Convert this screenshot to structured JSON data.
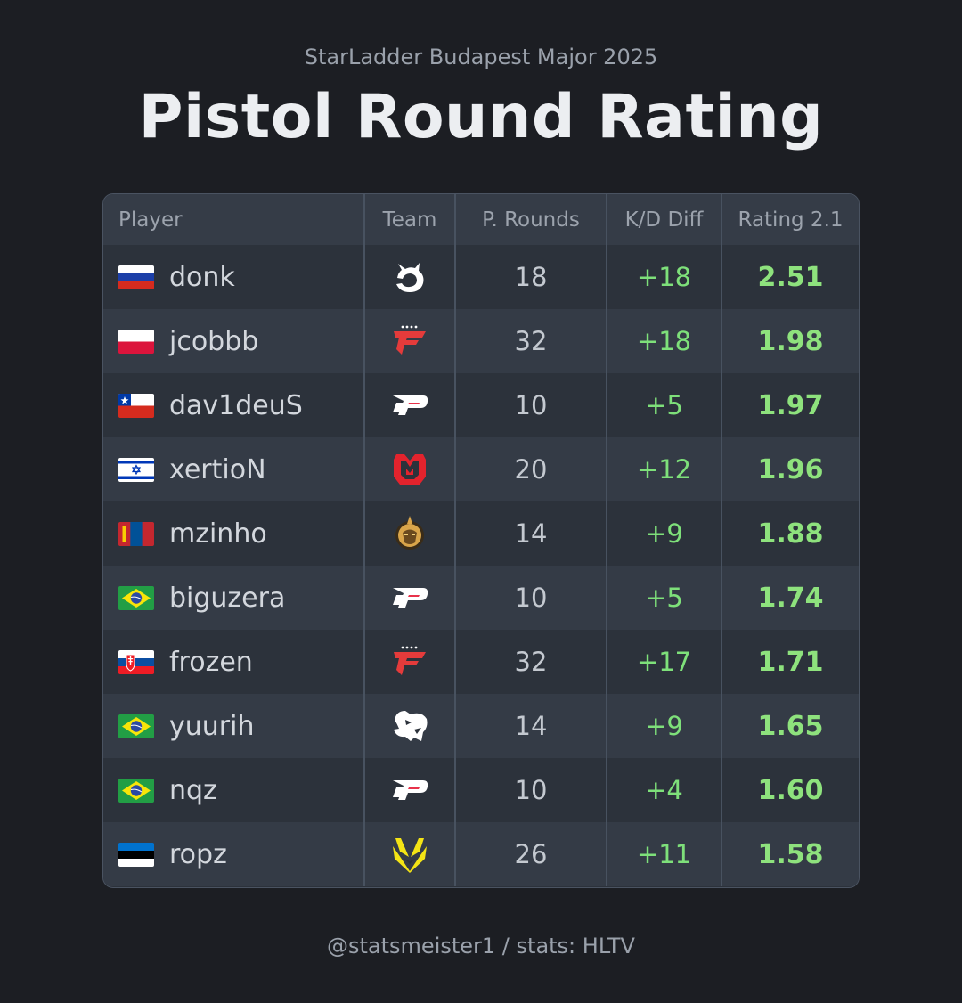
{
  "subtitle": "StarLadder Budapest Major 2025",
  "title": "Pistol Round Rating",
  "columns": {
    "player": "Player",
    "team": "Team",
    "rounds": "P. Rounds",
    "kd": "K/D Diff",
    "rating": "Rating 2.1"
  },
  "rows": [
    {
      "player": "donk",
      "flag": "russia-flag",
      "team_logo": "spirit-logo-icon",
      "rounds": "18",
      "kd": "+18",
      "rating": "2.51"
    },
    {
      "player": "jcobbb",
      "flag": "poland-flag",
      "team_logo": "faze-logo-icon",
      "rounds": "32",
      "kd": "+18",
      "rating": "1.98"
    },
    {
      "player": "dav1deuS",
      "flag": "chile-flag",
      "team_logo": "pain-logo-icon",
      "rounds": "10",
      "kd": "+5",
      "rating": "1.97"
    },
    {
      "player": "xertioN",
      "flag": "israel-flag",
      "team_logo": "mouz-logo-icon",
      "rounds": "20",
      "kd": "+12",
      "rating": "1.96"
    },
    {
      "player": "mzinho",
      "flag": "mongolia-flag",
      "team_logo": "mongolz-logo-icon",
      "rounds": "14",
      "kd": "+9",
      "rating": "1.88"
    },
    {
      "player": "biguzera",
      "flag": "brazil-flag",
      "team_logo": "pain-logo-icon",
      "rounds": "10",
      "kd": "+5",
      "rating": "1.74"
    },
    {
      "player": "frozen",
      "flag": "slovakia-flag",
      "team_logo": "faze-logo-icon",
      "rounds": "32",
      "kd": "+17",
      "rating": "1.71"
    },
    {
      "player": "yuurih",
      "flag": "brazil-flag",
      "team_logo": "furia-logo-icon",
      "rounds": "14",
      "kd": "+9",
      "rating": "1.65"
    },
    {
      "player": "nqz",
      "flag": "brazil-flag",
      "team_logo": "pain-logo-icon",
      "rounds": "10",
      "kd": "+4",
      "rating": "1.60"
    },
    {
      "player": "ropz",
      "flag": "estonia-flag",
      "team_logo": "vitality-logo-icon",
      "rounds": "26",
      "kd": "+11",
      "rating": "1.58"
    }
  ],
  "colors": {
    "background": "#1c1e23",
    "positive": "#7ee07a",
    "rating": "#8ee27d"
  },
  "footer": "@statsmeister1 / stats: HLTV"
}
